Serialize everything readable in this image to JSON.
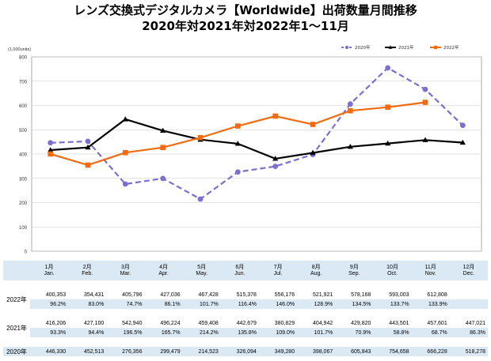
{
  "title": {
    "line1": "レンズ交換式デジタルカメラ【Worldwide】出荷数量月間推移",
    "line2": "2020年対2021年対2022年1～11月"
  },
  "chart_data": {
    "type": "line",
    "unit_label": "(1,000units)",
    "ylim": [
      0,
      800
    ],
    "yticks": [
      0,
      100,
      200,
      300,
      400,
      500,
      600,
      700,
      800
    ],
    "grid": true,
    "legend_position": "top-right",
    "categories": [
      "1月 Jan.",
      "2月 Feb.",
      "3月 Mar.",
      "4月 Apr.",
      "5月 May.",
      "6月 Jun.",
      "7月 Jul.",
      "8月 Aug.",
      "9月 Sep.",
      "10月 Oct.",
      "11月 Nov.",
      "12月 Dec."
    ],
    "series": [
      {
        "name": "2020年",
        "color": "#7b6fd0",
        "style": "dashed-circle",
        "values": [
          446.33,
          452.513,
          276.356,
          299.479,
          214.523,
          326.094,
          349.28,
          398.067,
          605.843,
          754.658,
          666.228,
          518.278
        ]
      },
      {
        "name": "2021年",
        "color": "#000000",
        "style": "solid-triangle",
        "values": [
          416.206,
          427.1,
          542.94,
          496.224,
          459.408,
          442.679,
          380.829,
          404.942,
          429.82,
          443.501,
          457.601,
          447.021
        ]
      },
      {
        "name": "2022年",
        "color": "#f26b0f",
        "style": "solid-square",
        "values": [
          400.353,
          354.431,
          405.796,
          427.036,
          467.428,
          515.378,
          556.176,
          521.921,
          578.168,
          593.003,
          612.808,
          null
        ]
      }
    ]
  },
  "table": {
    "months": [
      {
        "num": "1月",
        "en": "Jan."
      },
      {
        "num": "2月",
        "en": "Feb."
      },
      {
        "num": "3月",
        "en": "Mar."
      },
      {
        "num": "4月",
        "en": "Apr."
      },
      {
        "num": "5月",
        "en": "May."
      },
      {
        "num": "6月",
        "en": "Jun."
      },
      {
        "num": "7月",
        "en": "Jul."
      },
      {
        "num": "8月",
        "en": "Aug."
      },
      {
        "num": "9月",
        "en": "Sep."
      },
      {
        "num": "10月",
        "en": "Oct."
      },
      {
        "num": "11月",
        "en": "Nov."
      },
      {
        "num": "12月",
        "en": "Dec."
      }
    ],
    "rows": [
      {
        "label": "2022年",
        "values": [
          "400,353",
          "354,431",
          "405,796",
          "427,036",
          "467,428",
          "515,378",
          "556,176",
          "521,921",
          "578,168",
          "593,003",
          "612,808",
          ""
        ],
        "pct": [
          "96.2%",
          "83.0%",
          "74.7%",
          "86.1%",
          "101.7%",
          "116.4%",
          "146.0%",
          "128.9%",
          "134.5%",
          "133.7%",
          "133.9%",
          ""
        ]
      },
      {
        "label": "2021年",
        "values": [
          "416,206",
          "427,100",
          "542,940",
          "496,224",
          "459,408",
          "442,679",
          "380,829",
          "404,942",
          "429,820",
          "443,501",
          "457,601",
          "447,021"
        ],
        "pct": [
          "93.3%",
          "94.4%",
          "196.5%",
          "165.7%",
          "214.2%",
          "135.8%",
          "109.0%",
          "101.7%",
          "70.9%",
          "58.8%",
          "68.7%",
          "86.3%"
        ]
      },
      {
        "label": "2020年",
        "values": [
          "446,330",
          "452,513",
          "276,356",
          "299,479",
          "214,523",
          "326,094",
          "349,280",
          "398,067",
          "605,843",
          "754,658",
          "666,228",
          "518,278"
        ]
      }
    ]
  }
}
